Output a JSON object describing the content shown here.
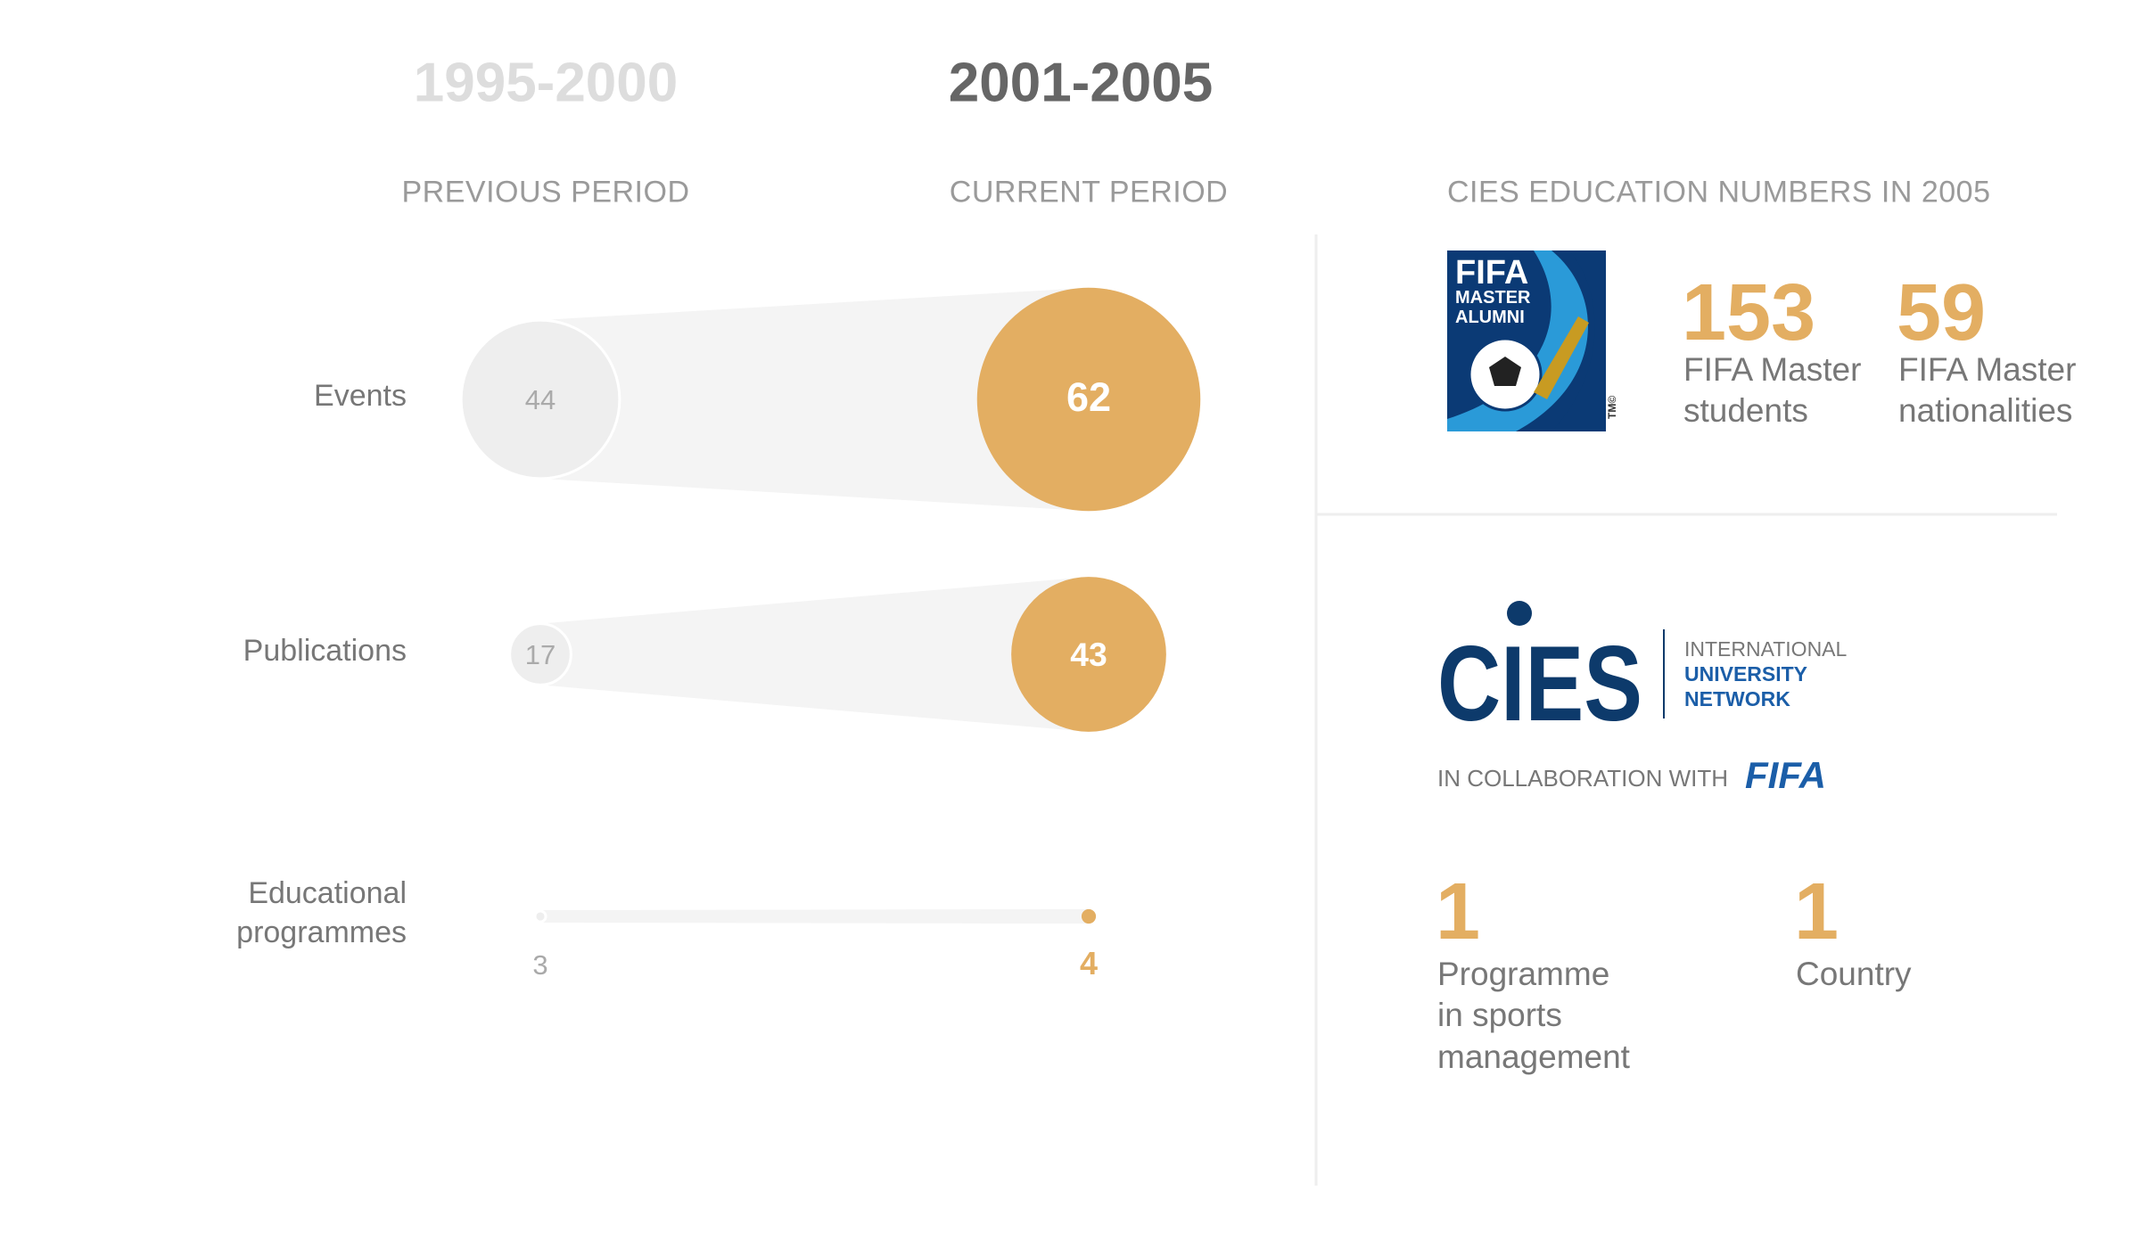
{
  "periods": {
    "previous": {
      "years": "1995-2000",
      "label": "PREVIOUS PERIOD"
    },
    "current": {
      "years": "2001-2005",
      "label": "CURRENT PERIOD"
    }
  },
  "metrics": [
    {
      "name": "Events",
      "previous": 44,
      "current": 62
    },
    {
      "name": "Publications",
      "previous": 17,
      "current": 43
    },
    {
      "name": "Educational programmes",
      "previous": 3,
      "current": 4
    }
  ],
  "education": {
    "title": "CIES EDUCATION NUMBERS IN 2005",
    "alumni_logo": {
      "line1": "FIFA",
      "line2": "MASTER",
      "line3": "ALUMNI",
      "mark": "TM©"
    },
    "stats": [
      {
        "value": 153,
        "label": "FIFA Master students"
      },
      {
        "value": 59,
        "label": "FIFA Master nationalities"
      }
    ],
    "network_logo": {
      "name": "CIES",
      "line1": "INTERNATIONAL",
      "line2": "UNIVERSITY",
      "line3": "NETWORK",
      "collab": "IN COLLABORATION WITH",
      "partner": "FIFA"
    },
    "network_stats": [
      {
        "value": 1,
        "label": "Programme in sports management"
      },
      {
        "value": 1,
        "label": "Country"
      }
    ]
  }
}
